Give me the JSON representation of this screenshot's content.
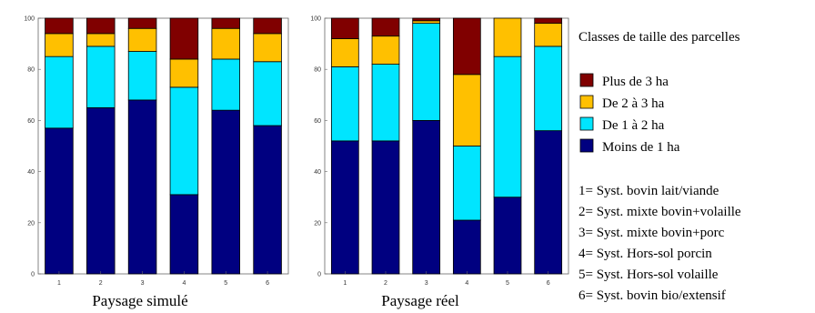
{
  "chart_data": [
    {
      "type": "bar",
      "stacked": true,
      "title": "",
      "caption": "Paysage simulé",
      "xlabel": "",
      "ylabel": "",
      "categories": [
        "1",
        "2",
        "3",
        "4",
        "5",
        "6"
      ],
      "ylim": [
        0,
        100
      ],
      "yticks": [
        "0",
        "20",
        "40",
        "60",
        "80",
        "100"
      ],
      "series": [
        {
          "name": "Moins de 1 ha",
          "color": "#000080",
          "values": [
            57,
            65,
            68,
            31,
            64,
            58
          ]
        },
        {
          "name": "De 1 à 2 ha",
          "color": "#00e5ff",
          "values": [
            28,
            24,
            19,
            42,
            20,
            25
          ]
        },
        {
          "name": "De 2 à 3 ha",
          "color": "#ffc000",
          "values": [
            9,
            5,
            9,
            11,
            12,
            11
          ]
        },
        {
          "name": "Plus de 3 ha",
          "color": "#800000",
          "values": [
            6,
            6,
            4,
            16,
            4,
            6
          ]
        }
      ]
    },
    {
      "type": "bar",
      "stacked": true,
      "title": "",
      "caption": "Paysage réel",
      "xlabel": "",
      "ylabel": "",
      "categories": [
        "1",
        "2",
        "3",
        "4",
        "5",
        "6"
      ],
      "ylim": [
        0,
        100
      ],
      "yticks": [
        "0",
        "20",
        "40",
        "60",
        "80",
        "100"
      ],
      "series": [
        {
          "name": "Moins de 1 ha",
          "color": "#000080",
          "values": [
            52,
            52,
            60,
            21,
            30,
            56
          ]
        },
        {
          "name": "De 1 à 2 ha",
          "color": "#00e5ff",
          "values": [
            29,
            30,
            38,
            29,
            55,
            33
          ]
        },
        {
          "name": "De 2 à 3 ha",
          "color": "#ffc000",
          "values": [
            11,
            11,
            1,
            28,
            15,
            9
          ]
        },
        {
          "name": "Plus de 3 ha",
          "color": "#800000",
          "values": [
            8,
            7,
            1,
            22,
            0,
            2
          ]
        }
      ]
    }
  ],
  "legend": {
    "title": "Classes de taille des parcelles",
    "items": [
      {
        "label": "Plus de 3 ha",
        "color": "#800000"
      },
      {
        "label": "De 2 à 3 ha",
        "color": "#ffc000"
      },
      {
        "label": "De 1 à 2 ha",
        "color": "#00e5ff"
      },
      {
        "label": "Moins de 1 ha",
        "color": "#000080"
      }
    ],
    "systems": [
      "1= Syst. bovin lait/viande",
      "2= Syst. mixte bovin+volaille",
      "3= Syst. mixte bovin+porc",
      "4= Syst. Hors-sol porcin",
      "5= Syst. Hors-sol volaille",
      "6= Syst. bovin bio/extensif"
    ]
  }
}
